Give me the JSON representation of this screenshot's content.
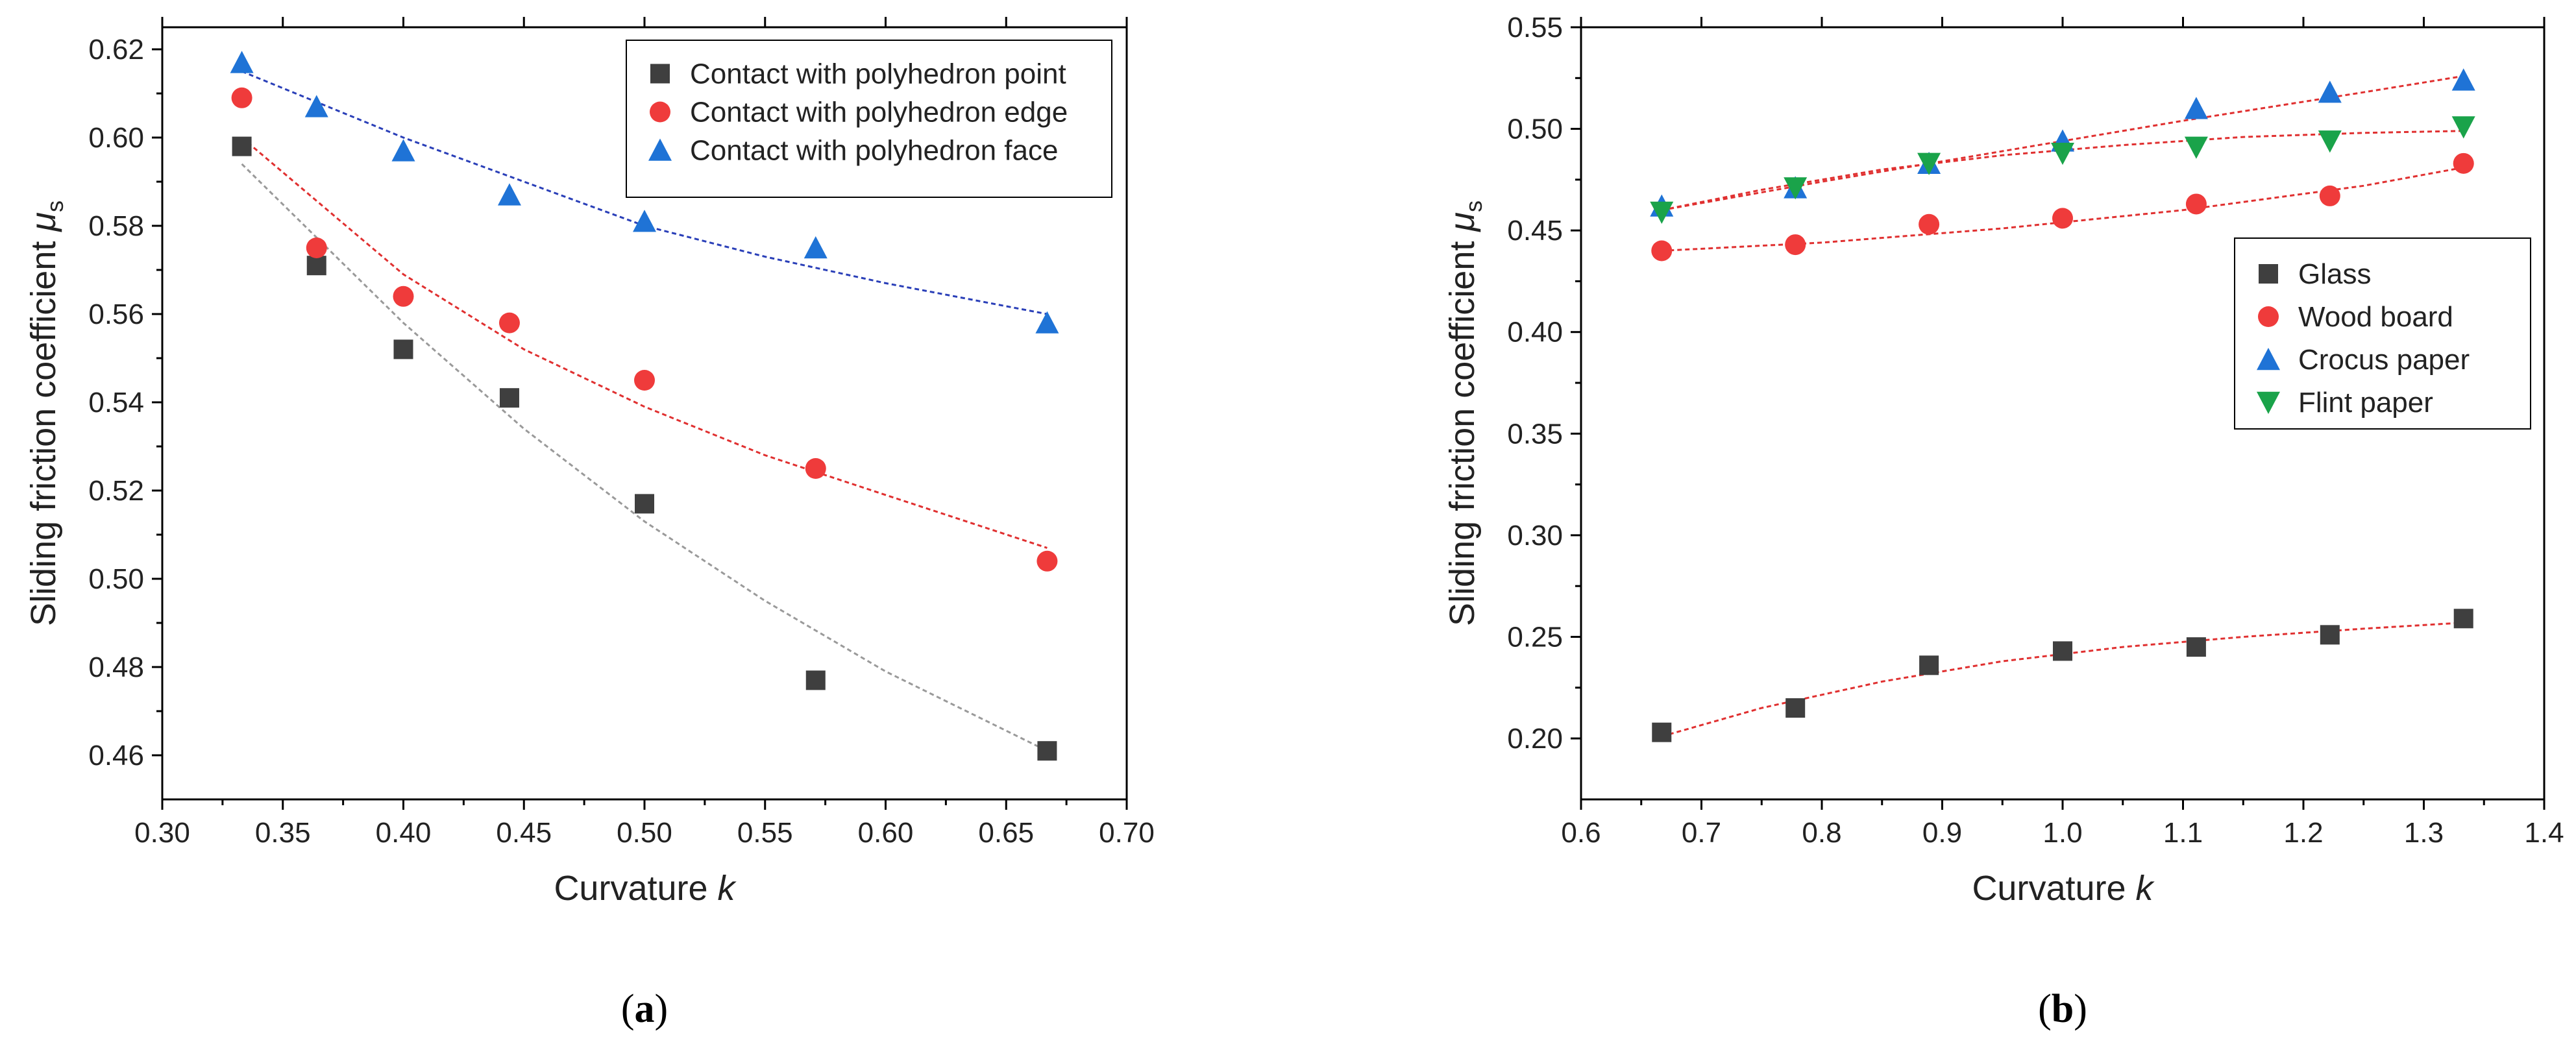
{
  "chart_data": [
    {
      "type": "scatter",
      "panel_label": "a",
      "xlabel": "Curvature",
      "xlabel_var": "k",
      "ylabel": "Sliding friction coefficient",
      "ylabel_var": "μ",
      "ylabel_sub": "s",
      "xlim": [
        0.3,
        0.7
      ],
      "ylim": [
        0.45,
        0.625
      ],
      "xticks": [
        0.3,
        0.35,
        0.4,
        0.45,
        0.5,
        0.55,
        0.6,
        0.65,
        0.7
      ],
      "xtick_labels": [
        "0.30",
        "0.35",
        "0.40",
        "0.45",
        "0.50",
        "0.55",
        "0.60",
        "0.65",
        "0.70"
      ],
      "yticks": [
        0.46,
        0.48,
        0.5,
        0.52,
        0.54,
        0.56,
        0.58,
        0.6,
        0.62
      ],
      "ytick_labels": [
        "0.46",
        "0.48",
        "0.50",
        "0.52",
        "0.54",
        "0.56",
        "0.58",
        "0.60",
        "0.62"
      ],
      "legend_position": "top-right",
      "legend_box": true,
      "series": [
        {
          "name": "Contact with polyhedron point",
          "marker": "square",
          "color": "#3f3f3f",
          "fit_color": "#9a9a9a",
          "x": [
            0.333,
            0.364,
            0.4,
            0.444,
            0.5,
            0.571,
            0.667
          ],
          "y": [
            0.598,
            0.571,
            0.552,
            0.541,
            0.517,
            0.477,
            0.461
          ],
          "fit": {
            "x": [
              0.333,
              0.4,
              0.45,
              0.5,
              0.55,
              0.6,
              0.667
            ],
            "y": [
              0.594,
              0.558,
              0.534,
              0.513,
              0.495,
              0.479,
              0.461
            ]
          }
        },
        {
          "name": "Contact with polyhedron edge",
          "marker": "circle",
          "color": "#ef3b3b",
          "fit_color": "#e03030",
          "x": [
            0.333,
            0.364,
            0.4,
            0.444,
            0.5,
            0.571,
            0.667
          ],
          "y": [
            0.609,
            0.575,
            0.564,
            0.558,
            0.545,
            0.525,
            0.504
          ],
          "fit": {
            "x": [
              0.333,
              0.4,
              0.45,
              0.5,
              0.55,
              0.6,
              0.667
            ],
            "y": [
              0.6,
              0.569,
              0.552,
              0.539,
              0.528,
              0.519,
              0.507
            ]
          }
        },
        {
          "name": "Contact with polyhedron face",
          "marker": "triangle-up",
          "color": "#1f73d6",
          "fit_color": "#2a3fb8",
          "x": [
            0.333,
            0.364,
            0.4,
            0.444,
            0.5,
            0.571,
            0.667
          ],
          "y": [
            0.617,
            0.607,
            0.597,
            0.587,
            0.581,
            0.575,
            0.558
          ],
          "fit": {
            "x": [
              0.333,
              0.4,
              0.45,
              0.5,
              0.55,
              0.6,
              0.667
            ],
            "y": [
              0.615,
              0.6,
              0.59,
              0.58,
              0.573,
              0.567,
              0.56
            ]
          }
        }
      ]
    },
    {
      "type": "scatter",
      "panel_label": "b",
      "xlabel": "Curvature",
      "xlabel_var": "k",
      "ylabel": "Sliding friction coefficient",
      "ylabel_var": "μ",
      "ylabel_sub": "s",
      "xlim": [
        0.6,
        1.4
      ],
      "ylim": [
        0.17,
        0.55
      ],
      "xticks": [
        0.6,
        0.7,
        0.8,
        0.9,
        1.0,
        1.1,
        1.2,
        1.3,
        1.4
      ],
      "xtick_labels": [
        "0.6",
        "0.7",
        "0.8",
        "0.9",
        "1.0",
        "1.1",
        "1.2",
        "1.3",
        "1.4"
      ],
      "yticks": [
        0.2,
        0.25,
        0.3,
        0.35,
        0.4,
        0.45,
        0.5,
        0.55
      ],
      "ytick_labels": [
        "0.20",
        "0.25",
        "0.30",
        "0.35",
        "0.40",
        "0.45",
        "0.50",
        "0.55"
      ],
      "legend_position": "right",
      "legend_box": true,
      "series": [
        {
          "name": "Glass",
          "marker": "square",
          "color": "#3f3f3f",
          "fit_color": "#e03030",
          "x": [
            0.667,
            0.778,
            0.889,
            1.0,
            1.111,
            1.222,
            1.333
          ],
          "y": [
            0.203,
            0.215,
            0.236,
            0.243,
            0.245,
            0.251,
            0.259
          ],
          "fit": {
            "x": [
              0.667,
              0.75,
              0.85,
              0.95,
              1.05,
              1.15,
              1.25,
              1.333
            ],
            "y": [
              0.201,
              0.215,
              0.228,
              0.238,
              0.245,
              0.25,
              0.254,
              0.257
            ]
          }
        },
        {
          "name": "Wood board",
          "marker": "circle",
          "color": "#ef3b3b",
          "fit_color": "#e03030",
          "x": [
            0.667,
            0.778,
            0.889,
            1.0,
            1.111,
            1.222,
            1.333
          ],
          "y": [
            0.44,
            0.443,
            0.453,
            0.456,
            0.463,
            0.467,
            0.483
          ],
          "fit": {
            "x": [
              0.667,
              0.8,
              0.95,
              1.1,
              1.25,
              1.333
            ],
            "y": [
              0.44,
              0.444,
              0.451,
              0.46,
              0.472,
              0.481
            ]
          }
        },
        {
          "name": "Crocus paper",
          "marker": "triangle-up",
          "color": "#1f73d6",
          "fit_color": "#e03030",
          "x": [
            0.667,
            0.778,
            0.889,
            1.0,
            1.111,
            1.222,
            1.333
          ],
          "y": [
            0.462,
            0.471,
            0.483,
            0.494,
            0.51,
            0.518,
            0.524
          ],
          "fit": {
            "x": [
              0.667,
              0.8,
              0.95,
              1.1,
              1.25,
              1.333
            ],
            "y": [
              0.46,
              0.474,
              0.489,
              0.504,
              0.518,
              0.526
            ]
          }
        },
        {
          "name": "Flint paper",
          "marker": "triangle-down",
          "color": "#1aa34a",
          "fit_color": "#e03030",
          "x": [
            0.667,
            0.778,
            0.889,
            1.0,
            1.111,
            1.222,
            1.333
          ],
          "y": [
            0.459,
            0.471,
            0.483,
            0.488,
            0.491,
            0.494,
            0.501
          ],
          "fit": {
            "x": [
              0.667,
              0.75,
              0.85,
              0.95,
              1.05,
              1.15,
              1.25,
              1.333
            ],
            "y": [
              0.46,
              0.47,
              0.48,
              0.487,
              0.492,
              0.496,
              0.498,
              0.499
            ]
          }
        }
      ]
    }
  ]
}
